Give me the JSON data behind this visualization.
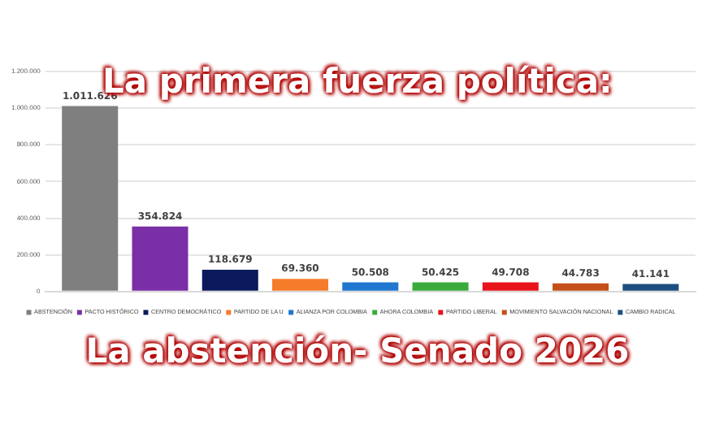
{
  "chart_data": {
    "type": "bar",
    "title": "La primera fuerza política:",
    "subtitle": "La abstención- Senado 2026",
    "categories": [
      null
    ],
    "series": [
      {
        "name": "ABSTENCIÓN",
        "color": "#7f7f7f",
        "values": [
          1011626
        ],
        "value_labels": [
          "1.011.626"
        ]
      },
      {
        "name": "PACTO HISTÓRICO",
        "color": "#7b2fa6",
        "values": [
          354824
        ],
        "value_labels": [
          "354.824"
        ]
      },
      {
        "name": "CENTRO DEMOCRÁTICO",
        "color": "#0b1a5c",
        "values": [
          118679
        ],
        "value_labels": [
          "118.679"
        ]
      },
      {
        "name": "PARTIDO DE LA U",
        "color": "#f57c2a",
        "values": [
          69360
        ],
        "value_labels": [
          "69.360"
        ]
      },
      {
        "name": "ALIANZA POR COLOMBIA",
        "color": "#1f77d0",
        "values": [
          50508
        ],
        "value_labels": [
          "50.508"
        ]
      },
      {
        "name": "AHORA COLOMBIA",
        "color": "#3aaa3a",
        "values": [
          50425
        ],
        "value_labels": [
          "50.425"
        ]
      },
      {
        "name": "PARTIDO LIBERAL",
        "color": "#e8141c",
        "values": [
          49708
        ],
        "value_labels": [
          "49.708"
        ]
      },
      {
        "name": "MOVIMIENTO SALVACIÓN NACIONAL",
        "color": "#c4501a",
        "values": [
          44783
        ],
        "value_labels": [
          "44.783"
        ]
      },
      {
        "name": "CAMBIO RADICAL",
        "color": "#1c4f80",
        "values": [
          41141
        ],
        "value_labels": [
          "41.141"
        ]
      }
    ],
    "ylim": [
      0,
      1200000
    ],
    "yticks": [
      0,
      {
        "value": 200000,
        "label": "200.000"
      },
      {
        "value": 400000,
        "label": "400.000"
      },
      {
        "value": 600000,
        "label": "600.000"
      },
      {
        "value": 800000,
        "label": "800.000"
      },
      {
        "value": 1000000,
        "label": "1.000.000"
      },
      {
        "value": 1200000,
        "label": "1.200.000"
      }
    ],
    "grid": "y",
    "legend": "bottom",
    "tick_labels": "y"
  }
}
